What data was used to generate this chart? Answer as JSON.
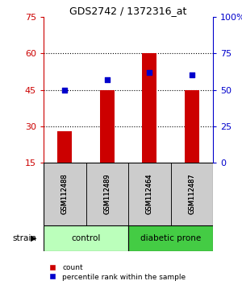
{
  "title": "GDS2742 / 1372316_at",
  "samples": [
    "GSM112488",
    "GSM112489",
    "GSM112464",
    "GSM112487"
  ],
  "counts": [
    28,
    45,
    60,
    45
  ],
  "percentiles": [
    50,
    57,
    62,
    60
  ],
  "ylim_left": [
    15,
    75
  ],
  "ylim_right": [
    0,
    100
  ],
  "yticks_left": [
    15,
    30,
    45,
    60,
    75
  ],
  "yticks_right": [
    0,
    25,
    50,
    75,
    100
  ],
  "bar_color": "#cc0000",
  "dot_color": "#0000cc",
  "bar_width": 0.35,
  "group_control_label": "control",
  "group_diab_label": "diabetic prone",
  "group_control_color": "#bbffbb",
  "group_diab_color": "#44cc44",
  "strain_label": "strain",
  "legend_count_label": "count",
  "legend_pct_label": "percentile rank within the sample",
  "title_color": "#000000",
  "left_axis_color": "#cc0000",
  "right_axis_color": "#0000cc",
  "sample_box_color": "#cccccc",
  "bg_color": "#ffffff"
}
